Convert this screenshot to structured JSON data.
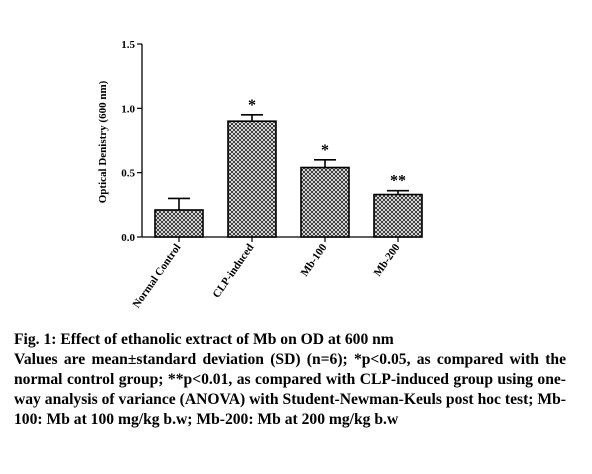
{
  "chart_data": {
    "type": "bar",
    "title": "",
    "xlabel": "",
    "ylabel": "Optical Denistry (600 nm)",
    "ylim": [
      0,
      1.5
    ],
    "yticks": [
      "0.0",
      "0.5",
      "1.0",
      "1.5"
    ],
    "categories": [
      "Normal Control",
      "CLP-induced",
      "Mb-100",
      "Mb-200"
    ],
    "values": [
      0.21,
      0.9,
      0.54,
      0.33
    ],
    "errors": [
      0.09,
      0.05,
      0.06,
      0.03
    ],
    "significance": [
      "",
      "*",
      "*",
      "**"
    ],
    "bar_pattern": "dense crosshatch",
    "grid": false,
    "legend": "none"
  },
  "caption": {
    "title": "Fig. 1: Effect of ethanolic extract of Mb on OD at 600 nm",
    "body": "Values are mean±standard deviation (SD) (n=6); *p<0.05, as compared with the normal control group; **p<0.01, as compared with CLP-induced group using one-way analysis of variance (ANOVA) with Student-Newman-Keuls post hoc test; Mb-100: Mb at 100 mg/kg b.w; Mb-200: Mb at 200 mg/kg b.w"
  }
}
